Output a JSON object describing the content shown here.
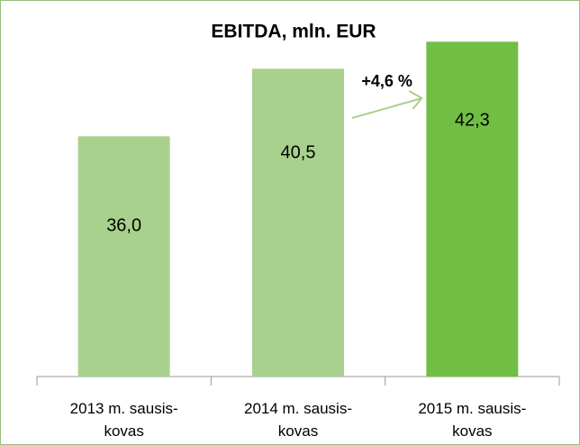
{
  "chart_data": {
    "type": "bar",
    "title": "EBITDA, mln. EUR",
    "categories": [
      "2013 m. sausis-kovas",
      "2014 m. sausis-kovas",
      "2015 m. sausis-kovas"
    ],
    "values": [
      36.0,
      40.5,
      42.3
    ],
    "value_labels": [
      "36,0",
      "40,5",
      "42,3"
    ],
    "colors": [
      "#a9d18e",
      "#a9d18e",
      "#70bf44"
    ],
    "ylim": [
      20,
      44
    ],
    "annotation": "+4,6 %",
    "grid": false
  }
}
